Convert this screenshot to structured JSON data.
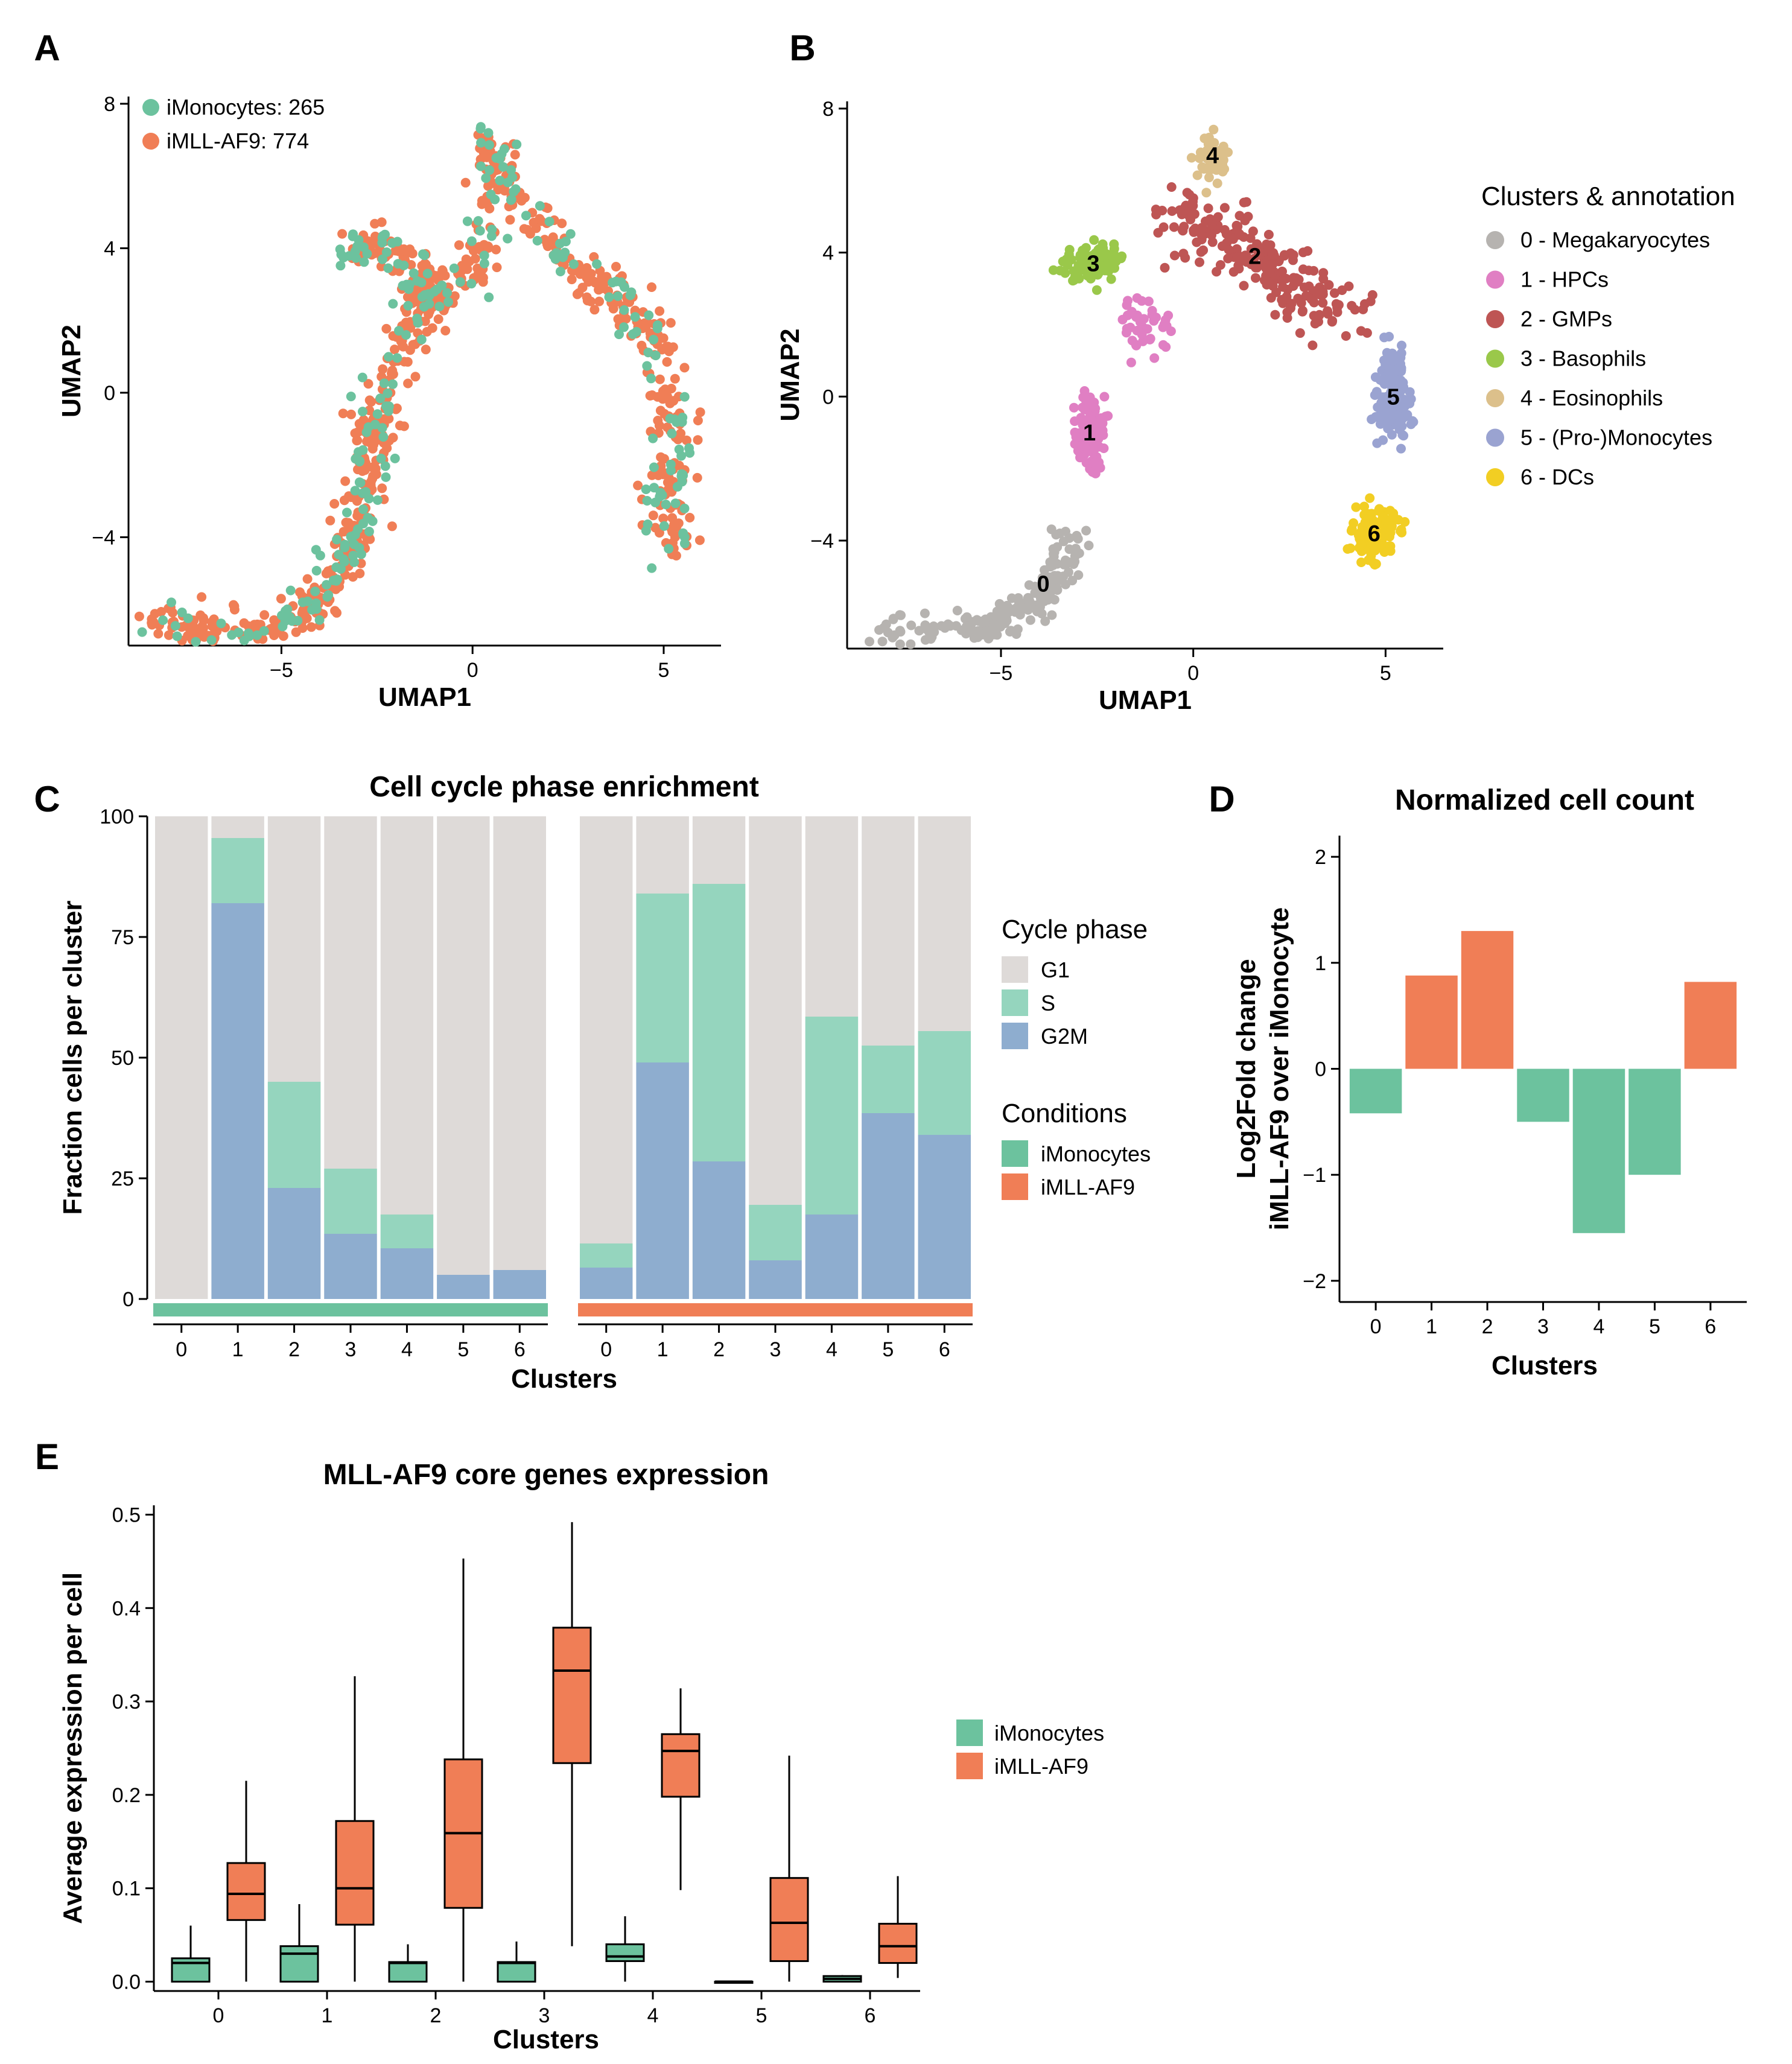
{
  "colors": {
    "imono": "#6CC29E",
    "imll": "#F07E56",
    "g1": "#DEDAD8",
    "s": "#95D5BE",
    "g2m": "#8EADCF",
    "axis": "#000000",
    "clusters": [
      "#B6B3B0",
      "#E07FC3",
      "#BE5554",
      "#9AC84A",
      "#DCC08B",
      "#9AA3D1",
      "#F2CE23"
    ]
  },
  "chart_data": [
    {
      "panel": "A",
      "type": "scatter",
      "xlabel": "UMAP1",
      "ylabel": "UMAP2",
      "xlim": [
        -9,
        6.5
      ],
      "ylim": [
        -7,
        8.2
      ],
      "xticks": [
        "−5",
        "0",
        "5"
      ],
      "yticks": [
        "−4",
        "0",
        "4",
        "8"
      ],
      "legend": [
        {
          "label": "iMonocytes: 265",
          "color": "#6CC29E"
        },
        {
          "label": "iMLL-AF9: 774",
          "color": "#F07E56"
        }
      ],
      "series": [
        {
          "name": "iMonocytes",
          "n": 265
        },
        {
          "name": "iMLL-AF9",
          "n": 774
        }
      ],
      "path": [
        [
          -8.3,
          -6.5
        ],
        [
          -7.0,
          -6.5
        ],
        [
          -5.5,
          -6.5
        ],
        [
          -4.2,
          -6.0
        ],
        [
          -3.5,
          -5.0
        ],
        [
          -3.2,
          -4.0
        ],
        [
          -2.8,
          -3.0
        ],
        [
          -2.7,
          -1.5
        ],
        [
          -2.6,
          -0.5
        ],
        [
          -1.8,
          1.5
        ],
        [
          -1.2,
          2.5
        ],
        [
          0.2,
          3.5
        ],
        [
          0.5,
          5.5
        ],
        [
          0.5,
          6.8
        ],
        [
          1.5,
          5.0
        ],
        [
          2.5,
          3.5
        ],
        [
          4.0,
          2.5
        ],
        [
          4.8,
          1.5
        ],
        [
          5.2,
          0.0
        ],
        [
          5.3,
          -1.5
        ],
        [
          5.0,
          -3.0
        ],
        [
          5.4,
          -4.5
        ]
      ],
      "branch": [
        [
          -3.2,
          3.8
        ],
        [
          -2.4,
          4.1
        ],
        [
          -1.5,
          3.3
        ],
        [
          -1.2,
          2.5
        ]
      ]
    },
    {
      "panel": "B",
      "type": "scatter",
      "xlabel": "UMAP1",
      "ylabel": "UMAP2",
      "xlim": [
        -9,
        6.5
      ],
      "ylim": [
        -7,
        8.2
      ],
      "xticks": [
        "−5",
        "0",
        "5"
      ],
      "yticks": [
        "−4",
        "0",
        "4",
        "8"
      ],
      "legend_title": "Clusters & annotation",
      "clusters": [
        {
          "id": "0",
          "label": "0 - Megakaryocytes",
          "cx": -3.9,
          "cy": -5.2
        },
        {
          "id": "1",
          "label": "1 - HPCs",
          "cx": -2.7,
          "cy": -1.0
        },
        {
          "id": "2",
          "label": "2 - GMPs",
          "cx": 1.6,
          "cy": 3.9
        },
        {
          "id": "3",
          "label": "3 - Basophils",
          "cx": -2.6,
          "cy": 3.7
        },
        {
          "id": "4",
          "label": "4 - Eosinophils",
          "cx": 0.5,
          "cy": 6.7
        },
        {
          "id": "5",
          "label": "5 - (Pro-)Monocytes",
          "cx": 5.2,
          "cy": 0.0
        },
        {
          "id": "6",
          "label": "6 - DCs",
          "cx": 4.7,
          "cy": -3.8
        }
      ]
    },
    {
      "panel": "C",
      "type": "bar",
      "stacked": true,
      "title": "Cell cycle phase enrichment",
      "xlabel": "Clusters",
      "ylabel": "Fraction cells per cluster",
      "ylim": [
        0,
        100
      ],
      "yticks": [
        "0",
        "25",
        "50",
        "75",
        "100"
      ],
      "categories": [
        "0",
        "1",
        "2",
        "3",
        "4",
        "5",
        "6"
      ],
      "groups": [
        {
          "name": "iMonocytes",
          "G2M": [
            0,
            82,
            23,
            13.5,
            10.5,
            5,
            6
          ],
          "S": [
            0,
            13.5,
            22,
            13.5,
            7,
            0,
            0
          ]
        },
        {
          "name": "iMLL-AF9",
          "G2M": [
            6.5,
            49,
            28.5,
            8,
            17.5,
            38.5,
            34
          ],
          "S": [
            5,
            35,
            57.5,
            11.5,
            41,
            14,
            21.5
          ]
        }
      ],
      "legend_phase_title": "Cycle phase",
      "legend_phase": [
        "G1",
        "S",
        "G2M"
      ],
      "legend_cond_title": "Conditions",
      "legend_cond": [
        "iMonocytes",
        "iMLL-AF9"
      ]
    },
    {
      "panel": "D",
      "type": "bar",
      "title": "Normalized cell count",
      "xlabel": "Clusters",
      "ylabel": [
        "Log2Fold change",
        "iMLL-AF9 over iMonocyte"
      ],
      "ylim": [
        -2.2,
        2.2
      ],
      "yticks": [
        "−2",
        "−1",
        "0",
        "1",
        "2"
      ],
      "categories": [
        "0",
        "1",
        "2",
        "3",
        "4",
        "5",
        "6"
      ],
      "values": [
        -0.42,
        0.88,
        1.3,
        -0.5,
        -1.55,
        -1.0,
        0.82
      ]
    },
    {
      "panel": "E",
      "type": "box",
      "title": "MLL-AF9 core genes expression",
      "xlabel": "Clusters",
      "ylabel": "Average expression per cell",
      "ylim": [
        -0.01,
        0.51
      ],
      "yticks": [
        "0.0",
        "0.1",
        "0.2",
        "0.3",
        "0.4",
        "0.5"
      ],
      "categories": [
        "0",
        "1",
        "2",
        "3",
        "4",
        "5",
        "6"
      ],
      "series": [
        {
          "name": "iMonocytes",
          "boxes": [
            {
              "min": 0,
              "q1": 0,
              "med": 0.02,
              "q3": 0.025,
              "max": 0.06
            },
            {
              "min": 0,
              "q1": 0,
              "med": 0.03,
              "q3": 0.038,
              "max": 0.083
            },
            {
              "min": 0,
              "q1": 0,
              "med": 0.02,
              "q3": 0.021,
              "max": 0.04
            },
            {
              "min": 0,
              "q1": 0,
              "med": 0.02,
              "q3": 0.021,
              "max": 0.043
            },
            {
              "min": 0,
              "q1": 0.022,
              "med": 0.027,
              "q3": 0.04,
              "max": 0.07
            },
            {
              "min": 0,
              "q1": 0,
              "med": 0,
              "q3": 0,
              "max": 0
            },
            {
              "min": 0,
              "q1": 0,
              "med": 0.003,
              "q3": 0.006,
              "max": 0.007
            }
          ]
        },
        {
          "name": "iMLL-AF9",
          "boxes": [
            {
              "min": 0,
              "q1": 0.066,
              "med": 0.094,
              "q3": 0.127,
              "max": 0.215
            },
            {
              "min": 0,
              "q1": 0.061,
              "med": 0.1,
              "q3": 0.172,
              "max": 0.327
            },
            {
              "min": 0,
              "q1": 0.079,
              "med": 0.159,
              "q3": 0.238,
              "max": 0.453
            },
            {
              "min": 0.038,
              "q1": 0.234,
              "med": 0.333,
              "q3": 0.379,
              "max": 0.492
            },
            {
              "min": 0.098,
              "q1": 0.198,
              "med": 0.247,
              "q3": 0.265,
              "max": 0.314
            },
            {
              "min": 0,
              "q1": 0.022,
              "med": 0.063,
              "q3": 0.111,
              "max": 0.242
            },
            {
              "min": 0.004,
              "q1": 0.02,
              "med": 0.038,
              "q3": 0.062,
              "max": 0.113
            }
          ]
        }
      ],
      "legend": [
        "iMonocytes",
        "iMLL-AF9"
      ]
    }
  ]
}
